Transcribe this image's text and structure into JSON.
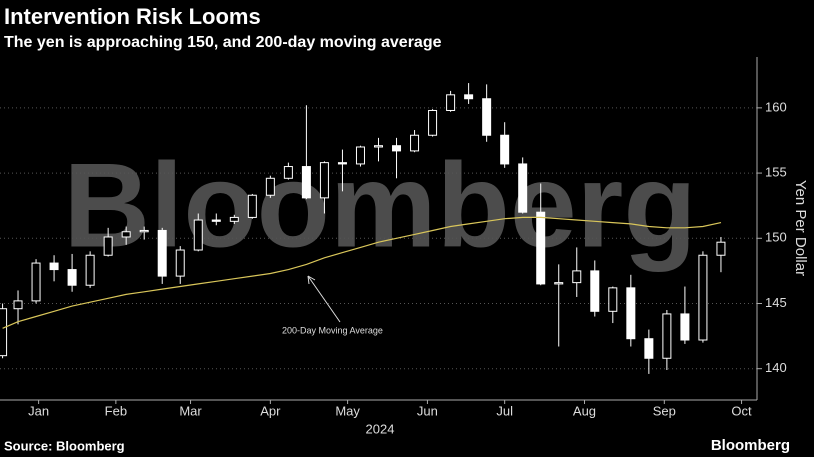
{
  "chart_data": {
    "type": "candlestick",
    "title": "Intervention Risk Looms",
    "subtitle": "The yen is approaching 150, and 200-day moving average",
    "ylabel": "Yen Per Dollar",
    "xlabel": "2024",
    "source": "Source: Bloomberg",
    "brand": "Bloomberg",
    "watermark": "Bloomberg",
    "annotation": "200-Day Moving Average",
    "color": "#ffffff",
    "grid": true,
    "xlim": [
      1,
      295
    ],
    "ylim": [
      137.6,
      163.9
    ],
    "yticks": [
      140,
      145,
      150,
      155,
      160
    ],
    "xticks": [
      {
        "value": 16,
        "label": "Jan"
      },
      {
        "value": 46,
        "label": "Feb"
      },
      {
        "value": 75,
        "label": "Mar"
      },
      {
        "value": 106,
        "label": "Apr"
      },
      {
        "value": 136,
        "label": "May"
      },
      {
        "value": 167,
        "label": "Jun"
      },
      {
        "value": 197,
        "label": "Jul"
      },
      {
        "value": 228,
        "label": "Aug"
      },
      {
        "value": 259,
        "label": "Sep"
      },
      {
        "value": 289,
        "label": "Oct"
      }
    ],
    "x": [
      2,
      8,
      15,
      22,
      29,
      36,
      43,
      50,
      57,
      64,
      71,
      78,
      85,
      92,
      99,
      106,
      113,
      120,
      127,
      134,
      141,
      148,
      155,
      162,
      169,
      176,
      183,
      190,
      197,
      204,
      211,
      218,
      225,
      232,
      239,
      246,
      253,
      260,
      267,
      274,
      281
    ],
    "open": [
      141.0,
      144.6,
      145.2,
      148.1,
      147.6,
      146.4,
      148.7,
      150.1,
      150.5,
      150.6,
      147.1,
      149.1,
      151.4,
      151.3,
      151.6,
      153.3,
      154.6,
      155.5,
      153.1,
      155.8,
      155.7,
      157.0,
      157.1,
      156.7,
      157.9,
      159.8,
      161.0,
      160.7,
      157.9,
      155.7,
      152.0,
      146.5,
      146.6,
      147.5,
      144.4,
      146.2,
      142.3,
      140.8,
      144.2,
      142.2,
      148.7
    ],
    "high": [
      145.0,
      146.0,
      148.4,
      148.7,
      148.8,
      149.0,
      150.8,
      150.9,
      150.9,
      150.8,
      149.4,
      151.9,
      151.9,
      151.8,
      153.4,
      154.8,
      155.8,
      160.2,
      155.9,
      156.8,
      157.1,
      157.7,
      157.7,
      158.3,
      159.9,
      161.3,
      161.9,
      161.8,
      158.9,
      156.2,
      154.2,
      148.0,
      149.3,
      148.3,
      146.3,
      147.2,
      143.0,
      144.5,
      146.3,
      149.0,
      150.1
    ],
    "low": [
      140.8,
      143.4,
      145.0,
      146.7,
      145.9,
      146.2,
      148.6,
      149.5,
      149.9,
      146.5,
      146.5,
      149.0,
      151.0,
      151.1,
      151.5,
      153.1,
      154.5,
      153.0,
      151.9,
      153.6,
      155.5,
      155.9,
      154.6,
      156.6,
      157.8,
      159.7,
      160.3,
      157.4,
      155.4,
      151.9,
      146.4,
      141.7,
      145.5,
      144.0,
      143.5,
      141.7,
      139.6,
      139.9,
      141.9,
      142.0,
      147.4
    ],
    "close": [
      144.6,
      145.2,
      148.1,
      147.6,
      146.4,
      148.7,
      150.1,
      150.5,
      150.6,
      147.1,
      149.1,
      151.4,
      151.3,
      151.6,
      153.3,
      154.6,
      155.5,
      153.1,
      155.8,
      155.7,
      157.0,
      157.1,
      156.7,
      157.9,
      159.8,
      161.0,
      160.7,
      157.9,
      155.7,
      152.0,
      146.5,
      146.6,
      147.5,
      144.4,
      146.2,
      142.3,
      140.8,
      144.2,
      142.2,
      148.7,
      149.7
    ],
    "moving_average": {
      "color": "#d9c65a",
      "values": [
        143.1,
        143.6,
        144.0,
        144.4,
        144.8,
        145.1,
        145.4,
        145.7,
        145.9,
        146.1,
        146.3,
        146.5,
        146.7,
        146.9,
        147.1,
        147.3,
        147.6,
        148.0,
        148.5,
        148.9,
        149.3,
        149.7,
        150.0,
        150.3,
        150.6,
        150.9,
        151.1,
        151.3,
        151.5,
        151.6,
        151.6,
        151.5,
        151.4,
        151.3,
        151.2,
        151.1,
        150.9,
        150.8,
        150.8,
        150.9,
        151.2
      ]
    }
  }
}
